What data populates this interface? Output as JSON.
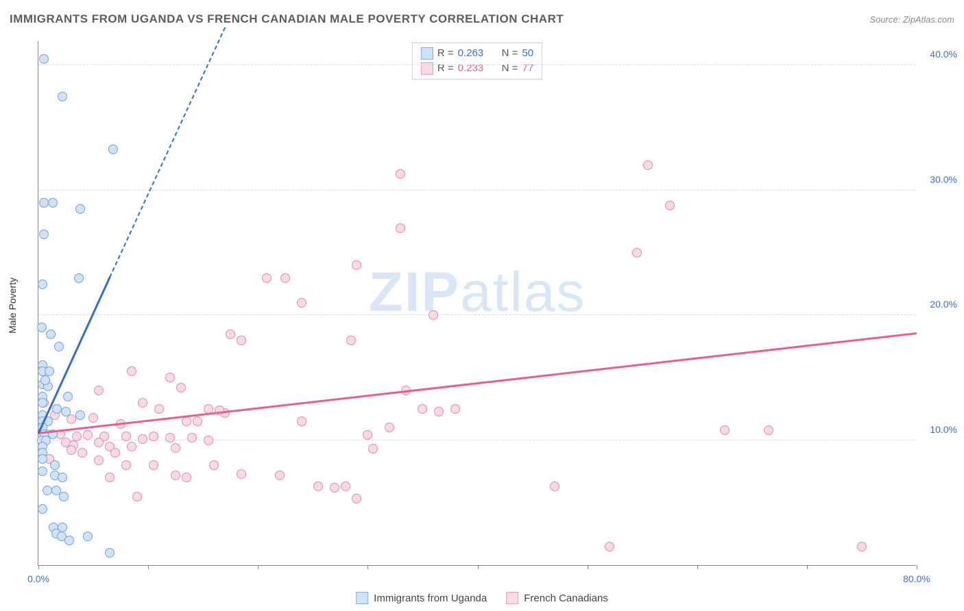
{
  "title": "IMMIGRANTS FROM UGANDA VS FRENCH CANADIAN MALE POVERTY CORRELATION CHART",
  "source_label": "Source:",
  "source_name": "ZipAtlas.com",
  "ylabel": "Male Poverty",
  "watermark": {
    "zip": "ZIP",
    "atlas": "atlas",
    "color": "#d9e6f5"
  },
  "axes": {
    "xlim": [
      0,
      80
    ],
    "ylim": [
      0,
      42
    ],
    "xticks": [
      0,
      10,
      20,
      30,
      40,
      50,
      60,
      70,
      80
    ],
    "xtick_labels": {
      "0": "0.0%",
      "80": "80.0%"
    },
    "yticks": [
      10,
      20,
      30,
      40
    ],
    "ytick_labels": [
      "10.0%",
      "20.0%",
      "30.0%",
      "40.0%"
    ],
    "xtick_label_color": "#3b6fd6",
    "ytick_label_color": "#3b6fd6",
    "grid_color": "#dddddd",
    "label_fontsize": 14
  },
  "legend_top": {
    "rows": [
      {
        "swatch_fill": "#cfe2f7",
        "swatch_border": "#7fb0e6",
        "r_label": "R =",
        "r_value": "0.263",
        "n_label": "N =",
        "n_value": "50",
        "value_color": "#3b6fd6"
      },
      {
        "swatch_fill": "#fadbe3",
        "swatch_border": "#f19ab4",
        "r_label": "R =",
        "r_value": "0.233",
        "n_label": "N =",
        "n_value": "77",
        "value_color": "#e85f8a"
      }
    ]
  },
  "legend_bottom": {
    "items": [
      {
        "swatch_fill": "#cfe2f7",
        "swatch_border": "#7fb0e6",
        "label": "Immigrants from Uganda"
      },
      {
        "swatch_fill": "#fadbe3",
        "swatch_border": "#f19ab4",
        "label": "French Canadians"
      }
    ]
  },
  "series": {
    "uganda": {
      "color_fill": "#cfe2f7",
      "color_border": "#6fa3df",
      "marker_size": 14,
      "trend": {
        "color": "#2f6fd0",
        "solid_from": [
          0,
          10.5
        ],
        "solid_to": [
          6.5,
          23
        ],
        "dash_to": [
          17,
          43
        ]
      },
      "points": [
        [
          0.5,
          40.5
        ],
        [
          2.2,
          37.5
        ],
        [
          6.8,
          33.3
        ],
        [
          0.5,
          29.0
        ],
        [
          1.3,
          29.0
        ],
        [
          3.8,
          28.5
        ],
        [
          0.5,
          26.5
        ],
        [
          3.7,
          23.0
        ],
        [
          0.4,
          22.5
        ],
        [
          0.3,
          19.0
        ],
        [
          1.1,
          18.5
        ],
        [
          1.9,
          17.5
        ],
        [
          0.4,
          16.0
        ],
        [
          0.4,
          15.5
        ],
        [
          1.0,
          15.5
        ],
        [
          0.4,
          14.5
        ],
        [
          0.9,
          14.3
        ],
        [
          0.6,
          14.8
        ],
        [
          0.4,
          13.5
        ],
        [
          2.7,
          13.5
        ],
        [
          0.4,
          13.0
        ],
        [
          1.7,
          12.5
        ],
        [
          2.5,
          12.3
        ],
        [
          3.8,
          12.0
        ],
        [
          0.4,
          12.0
        ],
        [
          0.4,
          11.5
        ],
        [
          0.9,
          11.5
        ],
        [
          0.4,
          11.0
        ],
        [
          0.5,
          10.5
        ],
        [
          1.3,
          10.5
        ],
        [
          0.3,
          10.0
        ],
        [
          0.7,
          10.0
        ],
        [
          0.4,
          9.5
        ],
        [
          0.4,
          9.0
        ],
        [
          0.4,
          8.5
        ],
        [
          1.5,
          8.0
        ],
        [
          0.4,
          7.5
        ],
        [
          1.5,
          7.2
        ],
        [
          2.2,
          7.0
        ],
        [
          0.8,
          6.0
        ],
        [
          1.6,
          6.0
        ],
        [
          2.3,
          5.5
        ],
        [
          0.4,
          4.5
        ],
        [
          1.4,
          3.0
        ],
        [
          2.2,
          3.0
        ],
        [
          1.6,
          2.5
        ],
        [
          2.1,
          2.3
        ],
        [
          4.5,
          2.3
        ],
        [
          2.8,
          2.0
        ],
        [
          6.5,
          1.0
        ]
      ]
    },
    "french": {
      "color_fill": "#fadbe3",
      "color_border": "#ef87a6",
      "marker_size": 14,
      "trend": {
        "color": "#e85f8a",
        "solid_from": [
          0,
          10.5
        ],
        "solid_to": [
          80,
          18.5
        ]
      },
      "points": [
        [
          55.5,
          32.0
        ],
        [
          33.0,
          31.3
        ],
        [
          57.5,
          28.8
        ],
        [
          33.0,
          27.0
        ],
        [
          54.5,
          25.0
        ],
        [
          29.0,
          24.0
        ],
        [
          20.8,
          23.0
        ],
        [
          22.5,
          23.0
        ],
        [
          24.0,
          21.0
        ],
        [
          36.0,
          20.0
        ],
        [
          17.5,
          18.5
        ],
        [
          18.5,
          18.0
        ],
        [
          28.5,
          18.0
        ],
        [
          8.5,
          15.5
        ],
        [
          12.0,
          15.0
        ],
        [
          13.0,
          14.2
        ],
        [
          33.5,
          14.0
        ],
        [
          5.5,
          14.0
        ],
        [
          9.5,
          13.0
        ],
        [
          0.5,
          13.0
        ],
        [
          11.0,
          12.5
        ],
        [
          15.5,
          12.5
        ],
        [
          17.0,
          12.2
        ],
        [
          16.5,
          12.4
        ],
        [
          35.0,
          12.5
        ],
        [
          36.5,
          12.3
        ],
        [
          38.0,
          12.5
        ],
        [
          1.5,
          12.0
        ],
        [
          3.0,
          11.7
        ],
        [
          5.0,
          11.8
        ],
        [
          7.5,
          11.3
        ],
        [
          13.5,
          11.5
        ],
        [
          14.5,
          11.5
        ],
        [
          24.0,
          11.5
        ],
        [
          32.0,
          11.0
        ],
        [
          62.5,
          10.8
        ],
        [
          66.5,
          10.8
        ],
        [
          0.8,
          10.5
        ],
        [
          2.0,
          10.5
        ],
        [
          3.5,
          10.3
        ],
        [
          4.5,
          10.4
        ],
        [
          6.0,
          10.3
        ],
        [
          8.0,
          10.3
        ],
        [
          9.5,
          10.1
        ],
        [
          10.5,
          10.3
        ],
        [
          12.0,
          10.2
        ],
        [
          14.0,
          10.2
        ],
        [
          15.5,
          10.0
        ],
        [
          2.5,
          9.8
        ],
        [
          3.2,
          9.6
        ],
        [
          5.5,
          9.8
        ],
        [
          6.5,
          9.5
        ],
        [
          8.5,
          9.5
        ],
        [
          12.5,
          9.4
        ],
        [
          3.0,
          9.2
        ],
        [
          4.0,
          9.0
        ],
        [
          7.0,
          9.0
        ],
        [
          30.5,
          9.3
        ],
        [
          1.0,
          8.5
        ],
        [
          5.5,
          8.4
        ],
        [
          8.0,
          8.0
        ],
        [
          10.5,
          8.0
        ],
        [
          12.5,
          7.2
        ],
        [
          16.0,
          8.0
        ],
        [
          18.5,
          7.3
        ],
        [
          22.0,
          7.2
        ],
        [
          6.5,
          7.0
        ],
        [
          13.5,
          7.0
        ],
        [
          25.5,
          6.3
        ],
        [
          27.0,
          6.2
        ],
        [
          28.0,
          6.3
        ],
        [
          47.0,
          6.3
        ],
        [
          9.0,
          5.5
        ],
        [
          29.0,
          5.3
        ],
        [
          52.0,
          1.5
        ],
        [
          75.0,
          1.5
        ],
        [
          30.0,
          10.4
        ]
      ]
    }
  }
}
